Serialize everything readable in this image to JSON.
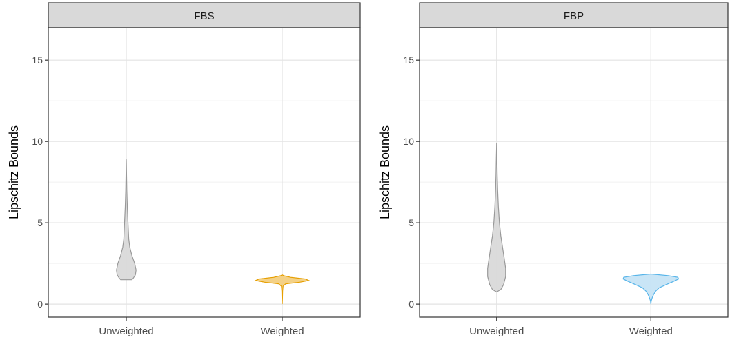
{
  "chart_data": [
    {
      "type": "violin",
      "panel_title": "FBS",
      "ylabel": "Lipschitz Bounds",
      "xlabel": "",
      "categories": [
        "Unweighted",
        "Weighted"
      ],
      "ylim": [
        -0.8,
        17.0
      ],
      "yticks": [
        0,
        5,
        10,
        15
      ],
      "grid": true,
      "legend": "none",
      "series": [
        {
          "category": "Unweighted",
          "color": "#999999",
          "fill": "#d9d9d9",
          "min": 1.5,
          "max": 8.9,
          "density": [
            {
              "y": 1.5,
              "w": 0.08
            },
            {
              "y": 1.6,
              "w": 0.1
            },
            {
              "y": 1.8,
              "w": 0.13
            },
            {
              "y": 2.1,
              "w": 0.14
            },
            {
              "y": 2.5,
              "w": 0.12
            },
            {
              "y": 3.0,
              "w": 0.08
            },
            {
              "y": 3.5,
              "w": 0.05
            },
            {
              "y": 4.0,
              "w": 0.035
            },
            {
              "y": 5.0,
              "w": 0.025
            },
            {
              "y": 6.0,
              "w": 0.015
            },
            {
              "y": 7.0,
              "w": 0.008
            },
            {
              "y": 8.0,
              "w": 0.004
            },
            {
              "y": 8.9,
              "w": 0.0
            }
          ]
        },
        {
          "category": "Weighted",
          "color": "#E69F00",
          "fill": "#f3cf80",
          "min": 0.0,
          "max": 1.8,
          "density": [
            {
              "y": 0.0,
              "w": 0.0
            },
            {
              "y": 0.4,
              "w": 0.004
            },
            {
              "y": 0.8,
              "w": 0.006
            },
            {
              "y": 1.1,
              "w": 0.012
            },
            {
              "y": 1.25,
              "w": 0.05
            },
            {
              "y": 1.35,
              "w": 0.25
            },
            {
              "y": 1.45,
              "w": 0.38
            },
            {
              "y": 1.55,
              "w": 0.33
            },
            {
              "y": 1.65,
              "w": 0.12
            },
            {
              "y": 1.75,
              "w": 0.02
            },
            {
              "y": 1.8,
              "w": 0.0
            }
          ]
        }
      ]
    },
    {
      "type": "violin",
      "panel_title": "FBP",
      "ylabel": "Lipschitz Bounds",
      "xlabel": "",
      "categories": [
        "Unweighted",
        "Weighted"
      ],
      "ylim": [
        -0.8,
        17.0
      ],
      "yticks": [
        0,
        5,
        10,
        15
      ],
      "grid": true,
      "legend": "none",
      "series": [
        {
          "category": "Unweighted",
          "color": "#999999",
          "fill": "#d9d9d9",
          "min": 0.75,
          "max": 9.9,
          "density": [
            {
              "y": 0.75,
              "w": 0.0
            },
            {
              "y": 0.9,
              "w": 0.06
            },
            {
              "y": 1.2,
              "w": 0.1
            },
            {
              "y": 1.7,
              "w": 0.13
            },
            {
              "y": 2.2,
              "w": 0.13
            },
            {
              "y": 2.8,
              "w": 0.11
            },
            {
              "y": 3.5,
              "w": 0.085
            },
            {
              "y": 4.2,
              "w": 0.06
            },
            {
              "y": 5.0,
              "w": 0.04
            },
            {
              "y": 6.0,
              "w": 0.025
            },
            {
              "y": 7.0,
              "w": 0.015
            },
            {
              "y": 8.0,
              "w": 0.008
            },
            {
              "y": 9.0,
              "w": 0.004
            },
            {
              "y": 9.9,
              "w": 0.0
            }
          ]
        },
        {
          "category": "Weighted",
          "color": "#56B4E9",
          "fill": "#c6e4f6",
          "min": 0.0,
          "max": 1.85,
          "density": [
            {
              "y": 0.0,
              "w": 0.0
            },
            {
              "y": 0.2,
              "w": 0.005
            },
            {
              "y": 0.4,
              "w": 0.02
            },
            {
              "y": 0.6,
              "w": 0.04
            },
            {
              "y": 0.8,
              "w": 0.07
            },
            {
              "y": 1.0,
              "w": 0.12
            },
            {
              "y": 1.2,
              "w": 0.22
            },
            {
              "y": 1.4,
              "w": 0.33
            },
            {
              "y": 1.55,
              "w": 0.4
            },
            {
              "y": 1.65,
              "w": 0.39
            },
            {
              "y": 1.75,
              "w": 0.25
            },
            {
              "y": 1.85,
              "w": 0.0
            }
          ]
        }
      ]
    }
  ]
}
